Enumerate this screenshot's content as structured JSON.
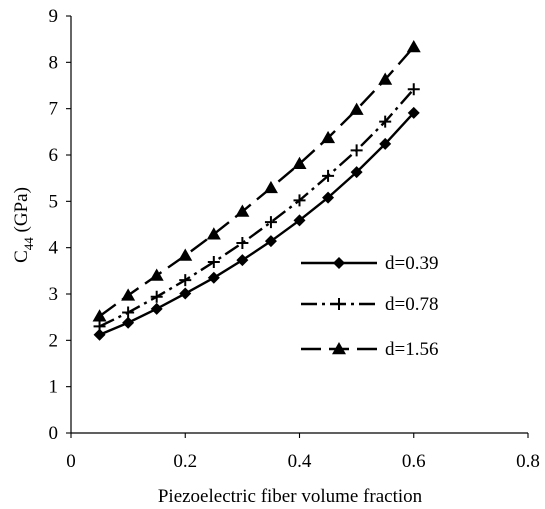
{
  "chart_data": {
    "type": "line",
    "title": "",
    "xlabel": "Piezoelectric fiber volume fraction",
    "ylabel_main": "C",
    "ylabel_sub": "44",
    "ylabel_unit": " (GPa)",
    "xlim": [
      0,
      0.8
    ],
    "ylim": [
      0,
      9
    ],
    "xticks": [
      0,
      0.2,
      0.4,
      0.6,
      0.8
    ],
    "xtick_labels": [
      "0",
      "0.2",
      "0.4",
      "0.6",
      "0.8"
    ],
    "yticks": [
      0,
      1,
      2,
      3,
      4,
      5,
      6,
      7,
      8,
      9
    ],
    "ytick_labels": [
      "0",
      "1",
      "2",
      "3",
      "4",
      "5",
      "6",
      "7",
      "8",
      "9"
    ],
    "grid": false,
    "legend_position": "right-middle",
    "x": [
      0.05,
      0.1,
      0.15,
      0.2,
      0.25,
      0.3,
      0.35,
      0.4,
      0.45,
      0.5,
      0.55,
      0.6
    ],
    "series": [
      {
        "name": "d=0.39",
        "marker": "diamond",
        "dash": "solid",
        "values": [
          2.12,
          2.38,
          2.68,
          3.01,
          3.35,
          3.73,
          4.14,
          4.59,
          5.08,
          5.63,
          6.24,
          6.91
        ]
      },
      {
        "name": "d=0.78",
        "marker": "plus",
        "dash": "dashdot",
        "values": [
          2.3,
          2.6,
          2.94,
          3.3,
          3.69,
          4.1,
          4.55,
          5.02,
          5.55,
          6.1,
          6.72,
          7.42
        ]
      },
      {
        "name": "d=1.56",
        "marker": "triangle",
        "dash": "longdash",
        "values": [
          2.52,
          2.97,
          3.4,
          3.83,
          4.29,
          4.78,
          5.29,
          5.81,
          6.37,
          6.98,
          7.63,
          8.33
        ]
      }
    ]
  }
}
